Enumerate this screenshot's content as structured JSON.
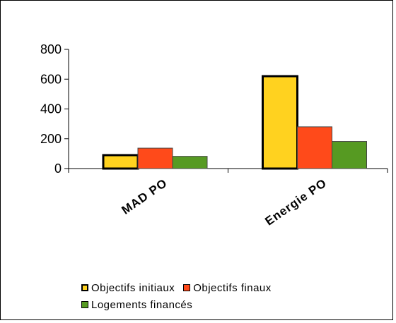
{
  "chart_data": {
    "type": "bar",
    "categories": [
      "MAD PO",
      "Energie PO"
    ],
    "series": [
      {
        "name": "Objectifs initiaux",
        "values": [
          90,
          620
        ],
        "color": "#FFD21F",
        "stroke": "#000000",
        "stroke_width": 3
      },
      {
        "name": "Objectifs finaux",
        "values": [
          137,
          280
        ],
        "color": "#FF4A1A",
        "stroke": "#444444",
        "stroke_width": 1
      },
      {
        "name": "Logements financés",
        "values": [
          82,
          182
        ],
        "color": "#569A22",
        "stroke": "#444444",
        "stroke_width": 1
      }
    ],
    "yticks": [
      "0",
      "200",
      "400",
      "600",
      "800"
    ],
    "ylim": [
      0,
      800
    ],
    "grid": false,
    "legend_position": "bottom"
  }
}
